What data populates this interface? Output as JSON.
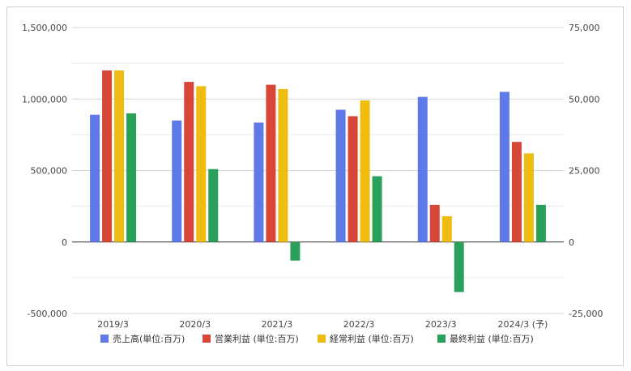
{
  "chart_data": {
    "type": "bar",
    "categories": [
      "2019/3",
      "2020/3",
      "2021/3",
      "2022/3",
      "2023/3",
      "2024/3 (予)"
    ],
    "y_left": {
      "ylim": [
        -500000,
        1500000
      ],
      "ticks": [
        -500000,
        0,
        500000,
        1000000,
        1500000
      ],
      "tick_labels": [
        "-500,000",
        "0",
        "500,000",
        "1,000,000",
        "1,500,000"
      ]
    },
    "y_right": {
      "ylim": [
        -25000,
        75000
      ],
      "ticks": [
        -25000,
        0,
        25000,
        50000,
        75000
      ],
      "tick_labels": [
        "-25,000",
        "0",
        "25,000",
        "50,000",
        "75,000"
      ]
    },
    "series": [
      {
        "name": "売上高(単位:百万)",
        "axis": "left",
        "color": "#6079e8",
        "values": [
          890000,
          850000,
          835000,
          925000,
          1015000,
          1050000
        ]
      },
      {
        "name": "営業利益 (単位:百万)",
        "axis": "right",
        "color": "#d84637",
        "values": [
          60000,
          56000,
          55000,
          44000,
          13000,
          35000
        ]
      },
      {
        "name": "経常利益 (単位:百万)",
        "axis": "right",
        "color": "#efbc12",
        "values": [
          60000,
          54500,
          53500,
          49500,
          9000,
          31000
        ]
      },
      {
        "name": "最終利益 (単位:百万)",
        "axis": "right",
        "color": "#2ba05a",
        "values": [
          45000,
          25500,
          -6500,
          23000,
          -17500,
          13000
        ]
      }
    ],
    "grid": true,
    "legend": "bottom"
  }
}
